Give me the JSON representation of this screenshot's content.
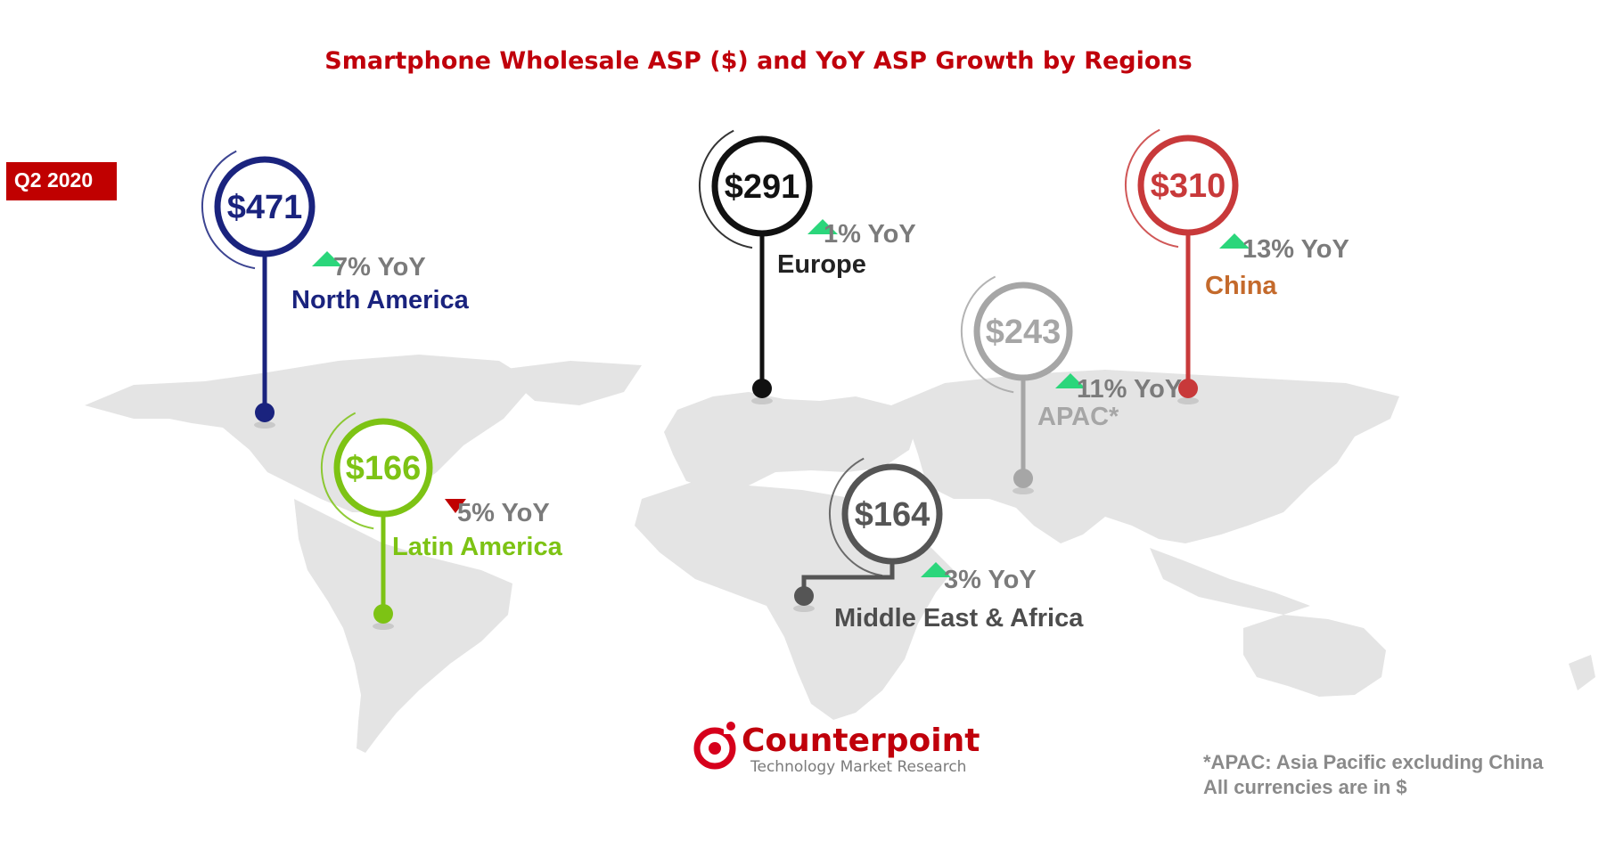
{
  "title": "Smartphone Wholesale ASP ($) and YoY ASP Growth by Regions",
  "period_badge": "Q2 2020",
  "chart_data": {
    "type": "map",
    "metric": "Smartphone Wholesale ASP ($)",
    "period": "Q2 2020",
    "regions": [
      {
        "name": "North America",
        "asp": 471,
        "asp_label": "$471",
        "yoy": 7,
        "yoy_label": "7% YoY",
        "direction": "up",
        "color": "#1a237e"
      },
      {
        "name": "Latin America",
        "asp": 166,
        "asp_label": "$166",
        "yoy": -5,
        "yoy_label": "5% YoY",
        "direction": "down",
        "color": "#7dc314"
      },
      {
        "name": "Europe",
        "asp": 291,
        "asp_label": "$291",
        "yoy": 1,
        "yoy_label": "1% YoY",
        "direction": "up",
        "color": "#111111"
      },
      {
        "name": "Middle East & Africa",
        "asp": 164,
        "asp_label": "$164",
        "yoy": 3,
        "yoy_label": "3% YoY",
        "direction": "up",
        "color": "#555555"
      },
      {
        "name": "APAC*",
        "asp": 243,
        "asp_label": "$243",
        "yoy": 11,
        "yoy_label": "11% YoY",
        "direction": "up",
        "color": "#a6a6a6"
      },
      {
        "name": "China",
        "asp": 310,
        "asp_label": "$310",
        "yoy": 13,
        "yoy_label": "13% YoY",
        "direction": "up",
        "color": "#c8393a"
      }
    ]
  },
  "colors": {
    "up": "#2bd67b",
    "down": "#c00000",
    "title": "#c0000b",
    "badge": "#c00000",
    "map": "#e4e4e4"
  },
  "logo": {
    "name": "Counterpoint",
    "tagline": "Technology Market Research"
  },
  "footnote": {
    "line1": "*APAC: Asia Pacific excluding China",
    "line2": "All currencies are in $"
  }
}
